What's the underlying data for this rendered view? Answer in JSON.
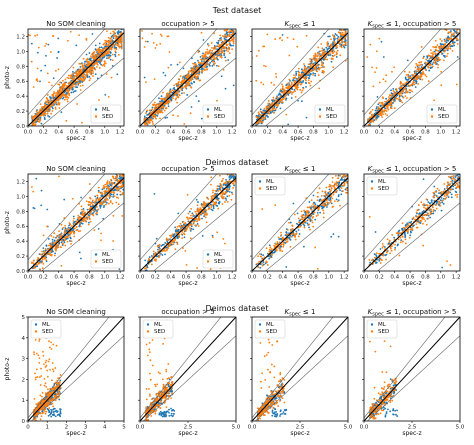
{
  "colors": {
    "ML": "#1f77b4",
    "SED": "#ff7f0e"
  },
  "chart_data": [
    {
      "row": 0,
      "type": "scatter",
      "title": "Test dataset",
      "xlabel": "spec-z",
      "ylabel": "photo-z",
      "xlim": [
        0,
        1.25
      ],
      "ylim": [
        0,
        1.3
      ],
      "xticks": [
        "0.0",
        "0.2",
        "0.4",
        "0.6",
        "0.8",
        "1.0",
        "1.2"
      ],
      "yticks": [
        "0.0",
        "0.2",
        "0.4",
        "0.6",
        "0.8",
        "1.0",
        "1.2"
      ],
      "tickvals": [
        0,
        0.2,
        0.4,
        0.6,
        0.8,
        1.0,
        1.2
      ],
      "legend_position": "lower-right",
      "panel_titles": [
        "No SOM cleaning",
        "occupation > 5",
        "K_spec ≤ 1",
        "K_spec ≤ 1, occupation > 5"
      ],
      "series": [
        {
          "name": "ML"
        },
        {
          "name": "SED"
        }
      ],
      "note": "dense cloud of points along the 1:1 line from 0 to 1.2, with outlier bands"
    },
    {
      "row": 1,
      "type": "scatter",
      "title": "Deimos dataset",
      "xlabel": "spec-z",
      "ylabel": "photo-z",
      "xlim": [
        0,
        1.25
      ],
      "ylim": [
        0,
        1.3
      ],
      "xticks": [
        "0.0",
        "0.2",
        "0.4",
        "0.6",
        "0.8",
        "1.0",
        "1.2"
      ],
      "yticks": [
        "0.0",
        "0.2",
        "0.4",
        "0.6",
        "0.8",
        "1.0",
        "1.2"
      ],
      "tickvals": [
        0,
        0.2,
        0.4,
        0.6,
        0.8,
        1.0,
        1.2
      ],
      "legend_position": [
        "lower-right",
        "lower-right",
        "upper-left",
        "upper-left"
      ],
      "panel_titles": [
        "No SOM cleaning",
        "occupation > 5",
        "K_spec ≤ 1",
        "K_spec ≤ 1, occupation > 5"
      ],
      "series": [
        {
          "name": "ML"
        },
        {
          "name": "SED"
        }
      ]
    },
    {
      "row": 2,
      "type": "scatter",
      "title": "Deimos dataset",
      "xlabel": "spec-z",
      "ylabel": "photo-z",
      "xlim": [
        0,
        5
      ],
      "ylim": [
        0,
        5
      ],
      "xticks": [
        "0.0",
        "2.5",
        "5.0"
      ],
      "xtickvals": [
        0,
        2.5,
        5
      ],
      "xticks_full": [
        "0",
        "1",
        "2",
        "3",
        "4",
        "5"
      ],
      "xtickvals_full": [
        0,
        1,
        2,
        3,
        4,
        5
      ],
      "yticks": [
        "0",
        "1",
        "2",
        "3",
        "4",
        "5"
      ],
      "tickvals": [
        0,
        1,
        2,
        3,
        4,
        5
      ],
      "legend_position": "upper-left",
      "panel_titles": [
        "No SOM cleaning",
        "occupation > 5",
        "K_spec ≤ 1",
        "K_spec ≤ 1, occupation > 5"
      ],
      "series": [
        {
          "name": "ML"
        },
        {
          "name": "SED"
        }
      ]
    }
  ]
}
